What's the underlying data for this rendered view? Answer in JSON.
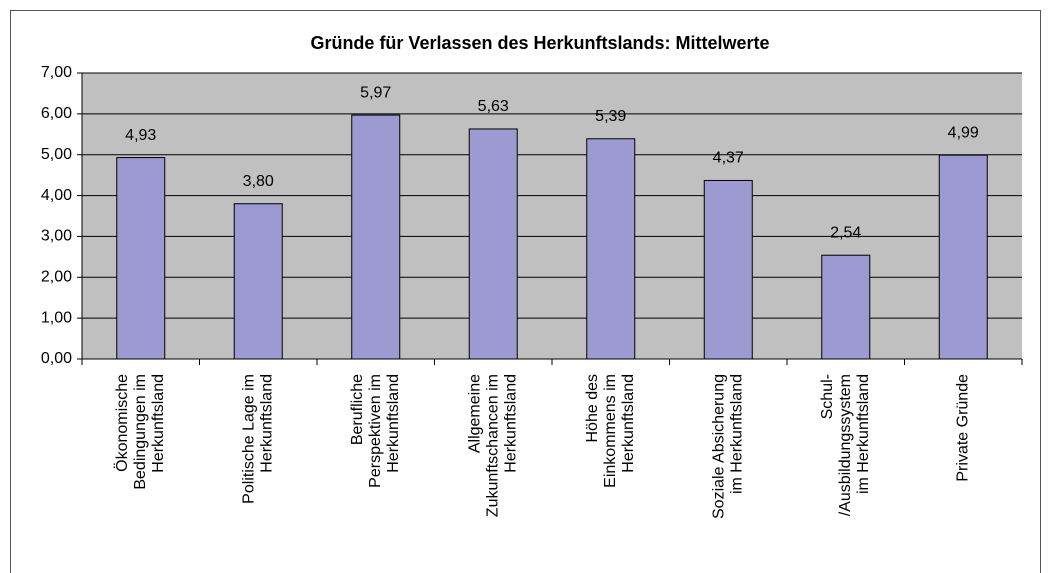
{
  "chart_data": {
    "type": "bar",
    "title": "Gründe für Verlassen des Herkunftslands: Mittelwerte",
    "categories": [
      [
        "Ökonomische",
        "Bedingungen im",
        "Herkunftsland"
      ],
      [
        "Politische Lage im",
        "Herkunftsland"
      ],
      [
        "Berufliche",
        "Perspektiven im",
        "Herkunftsland"
      ],
      [
        "Allgemeine",
        "Zukunftschancen im",
        "Herkunftsland"
      ],
      [
        "Höhe des",
        "Einkommens im",
        "Herkunftsland"
      ],
      [
        "Soziale Absicherung",
        "im Herkunftsland"
      ],
      [
        "Schul-",
        "/Ausbildungssystem",
        "im Herkunftsland"
      ],
      [
        "Private Gründe"
      ]
    ],
    "values": [
      4.93,
      3.8,
      5.97,
      5.63,
      5.39,
      4.37,
      2.54,
      4.99
    ],
    "value_labels": [
      "4,93",
      "3,80",
      "5,97",
      "5,63",
      "5,39",
      "4,37",
      "2,54",
      "4,99"
    ],
    "color": "#9c9ad0",
    "ylim": [
      0,
      7
    ],
    "yticks": [
      {
        "value": 0,
        "label": "0,00"
      },
      {
        "value": 1,
        "label": "1,00"
      },
      {
        "value": 2,
        "label": "2,00"
      },
      {
        "value": 3,
        "label": "3,00"
      },
      {
        "value": 4,
        "label": "4,00"
      },
      {
        "value": 5,
        "label": "5,00"
      },
      {
        "value": 6,
        "label": "6,00"
      },
      {
        "value": 7,
        "label": "7,00"
      }
    ],
    "grid": true
  }
}
